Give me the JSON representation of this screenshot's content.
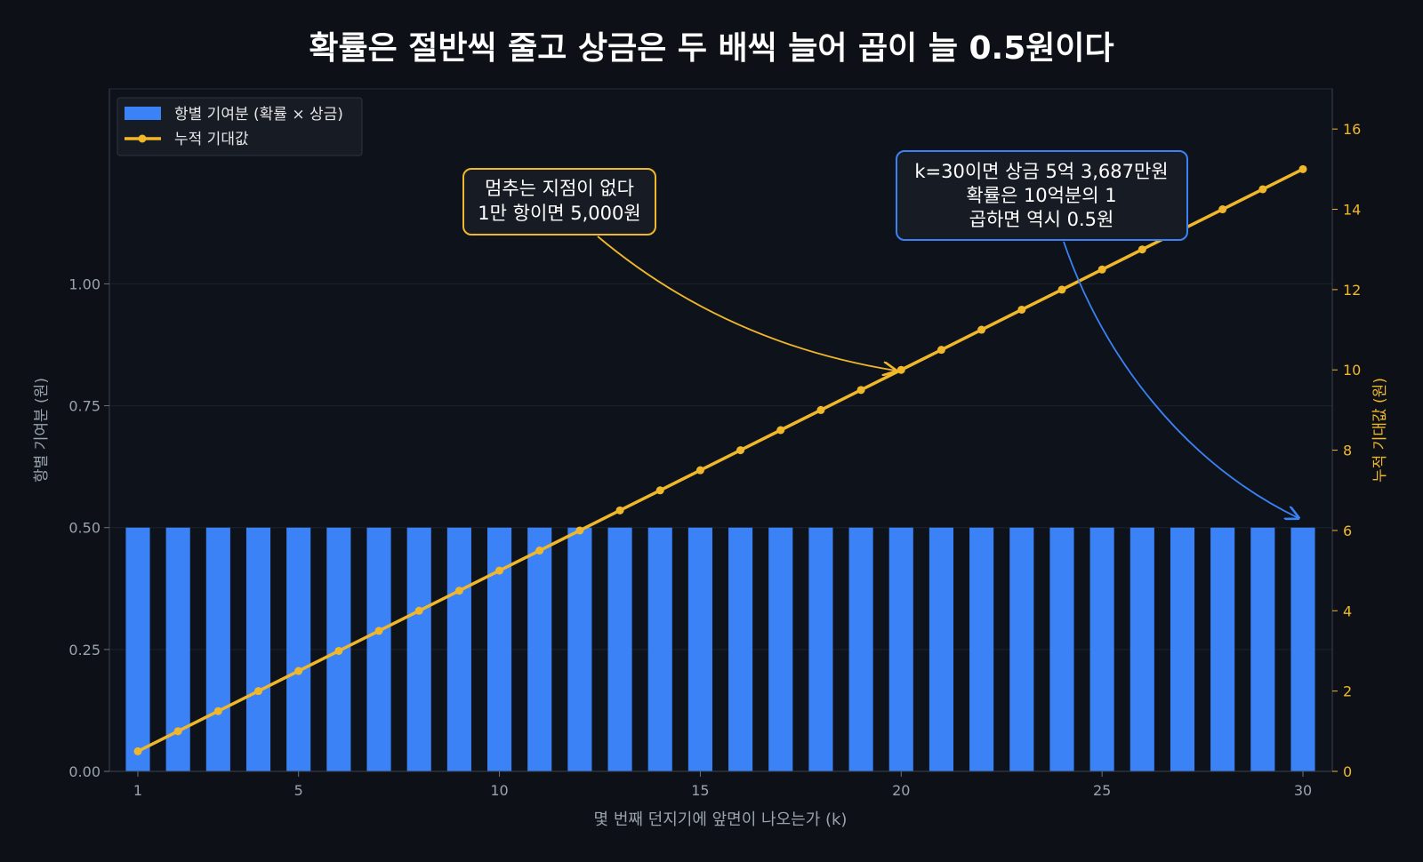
{
  "chart_data": {
    "type": "bar",
    "title": "확률은 절반씩 줄고 상금은 두 배씩 늘어 곱이 늘 0.5원이다",
    "xlabel": "몇 번째 던지기에 앞면이 나오는가 (k)",
    "ylabel_left": "항별 기여분 (원)",
    "ylabel_right": "누적 기대값 (원)",
    "x": [
      1,
      2,
      3,
      4,
      5,
      6,
      7,
      8,
      9,
      10,
      11,
      12,
      13,
      14,
      15,
      16,
      17,
      18,
      19,
      20,
      21,
      22,
      23,
      24,
      25,
      26,
      27,
      28,
      29,
      30
    ],
    "x_ticks": [
      1,
      5,
      10,
      15,
      20,
      25,
      30
    ],
    "y_left_ticks": [
      "0.00",
      "0.25",
      "0.50",
      "0.75",
      "1.00"
    ],
    "y_right_ticks": [
      0,
      2,
      4,
      6,
      8,
      10,
      12,
      14,
      16
    ],
    "ylim_left": [
      0,
      1.4
    ],
    "ylim_right": [
      0,
      17
    ],
    "grid": true,
    "legend_position": "top-left",
    "series": [
      {
        "name": "항별 기여분 (확률 × 상금)",
        "type": "bar",
        "axis": "left",
        "color": "#3b82f6",
        "values": [
          0.5,
          0.5,
          0.5,
          0.5,
          0.5,
          0.5,
          0.5,
          0.5,
          0.5,
          0.5,
          0.5,
          0.5,
          0.5,
          0.5,
          0.5,
          0.5,
          0.5,
          0.5,
          0.5,
          0.5,
          0.5,
          0.5,
          0.5,
          0.5,
          0.5,
          0.5,
          0.5,
          0.5,
          0.5,
          0.5
        ]
      },
      {
        "name": "누적 기대값",
        "type": "line",
        "axis": "right",
        "color": "#f0b72b",
        "values": [
          0.5,
          1,
          1.5,
          2,
          2.5,
          3,
          3.5,
          4,
          4.5,
          5,
          5.5,
          6,
          6.5,
          7,
          7.5,
          8,
          8.5,
          9,
          9.5,
          10,
          10.5,
          11,
          11.5,
          12,
          12.5,
          13,
          13.5,
          14,
          14.5,
          15
        ]
      }
    ],
    "annotations": [
      {
        "lines": [
          "멈추는 지점이 없다",
          "1만 항이면 5,000원"
        ],
        "color": "#f0b72b",
        "target_x": 20,
        "target_axis": "right",
        "target_y": 10
      },
      {
        "lines": [
          "k=30이면 상금 5억 3,687만원",
          "확률은 10억분의 1",
          "곱하면 역시 0.5원"
        ],
        "color": "#3b82f6",
        "target_x": 30,
        "target_axis": "left",
        "target_y": 0.5
      }
    ]
  }
}
